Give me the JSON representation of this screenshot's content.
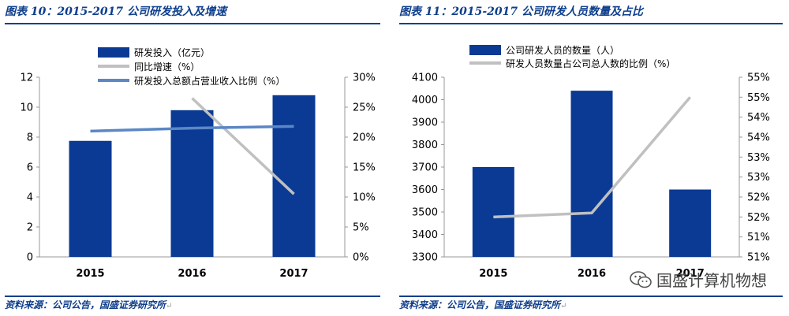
{
  "left": {
    "title": "图表 10：2015-2017 公司研发投入及增速",
    "source": "资料来源：公司公告，国盛证券研究所",
    "chart_data": {
      "type": "bar",
      "categories": [
        "2015",
        "2016",
        "2017"
      ],
      "series": [
        {
          "name": "研发投入（亿元）",
          "kind": "bar",
          "axis": "left",
          "values": [
            7.75,
            9.8,
            10.8
          ],
          "color": "#0a3a94"
        },
        {
          "name": "同比增速（%）",
          "kind": "line",
          "axis": "right",
          "values": [
            null,
            26.5,
            10.5
          ],
          "color": "#c0c0c0"
        },
        {
          "name": "研发投入总额占营业收入比例（%）",
          "kind": "line",
          "axis": "right",
          "values": [
            21.0,
            21.5,
            21.8
          ],
          "color": "#5b87c5"
        }
      ],
      "yleft_ticks": [
        "0",
        "2",
        "4",
        "6",
        "8",
        "10",
        "12"
      ],
      "yleft_range": [
        0,
        12
      ],
      "yright_ticks": [
        "0%",
        "5%",
        "10%",
        "15%",
        "20%",
        "25%",
        "30%"
      ],
      "yright_range": [
        0,
        30
      ],
      "legend_position": "top-left",
      "grid": false
    }
  },
  "right": {
    "title": "图表 11：2015-2017 公司研发人员数量及占比",
    "source": "资料来源：公司公告，国盛证券研究所",
    "chart_data": {
      "type": "bar",
      "categories": [
        "2015",
        "2016",
        "2017"
      ],
      "series": [
        {
          "name": "公司研发人员的数量（人）",
          "kind": "bar",
          "axis": "left",
          "values": [
            3700,
            4040,
            3600
          ],
          "color": "#0a3a94"
        },
        {
          "name": "研发人员数量占公司总人数的比例（%）",
          "kind": "line",
          "axis": "right",
          "values": [
            52.0,
            52.1,
            55.0
          ],
          "color": "#c0c0c0"
        }
      ],
      "yleft_ticks": [
        "3300",
        "3400",
        "3500",
        "3600",
        "3700",
        "3800",
        "3900",
        "4000",
        "4100"
      ],
      "yleft_range": [
        3300,
        4100
      ],
      "yright_ticks": [
        "51%",
        "51%",
        "52%",
        "52%",
        "53%",
        "53%",
        "54%",
        "54%",
        "55%",
        "55%"
      ],
      "yright_range": [
        51,
        55.5
      ],
      "legend_position": "top-left",
      "grid": false
    }
  },
  "watermark": {
    "text": "国盛计算机物想",
    "icon": "wechat-icon"
  }
}
